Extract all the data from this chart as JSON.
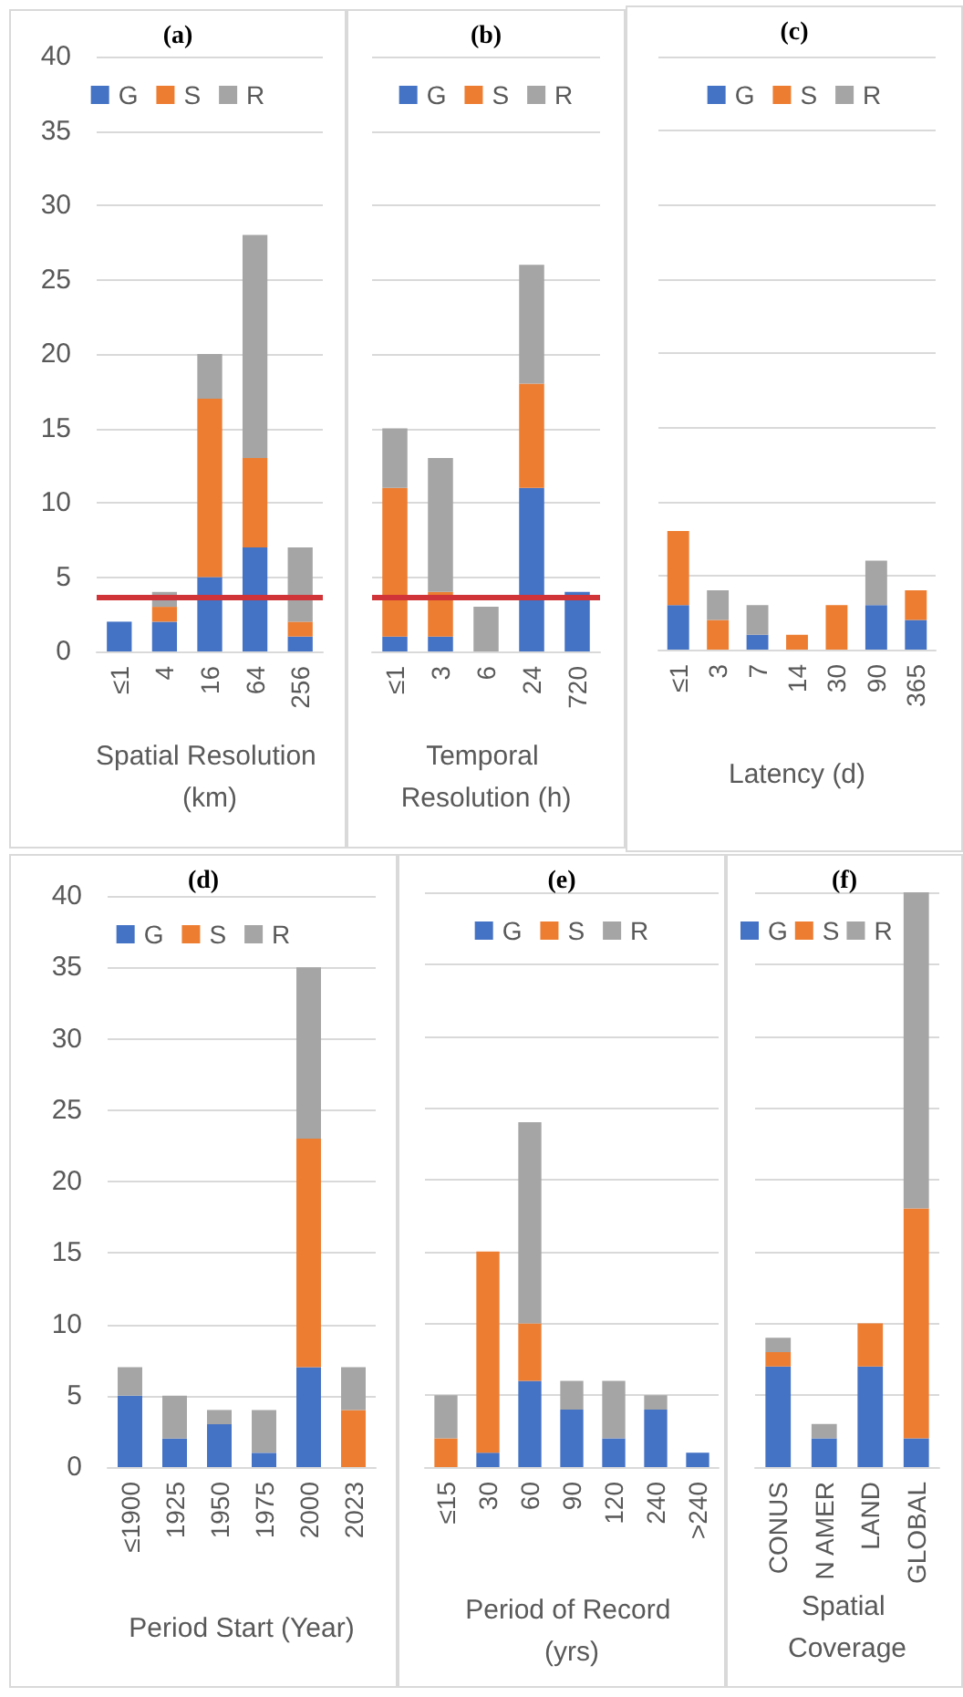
{
  "chart_data": [
    {
      "type": "bar",
      "title": "(a)",
      "xlabel": "Spatial Resolution (km)",
      "categories": [
        "≤1",
        "4",
        "16",
        "64",
        "256"
      ],
      "stacked": true,
      "ylim": [
        0,
        40
      ],
      "yticks": [
        0,
        5,
        10,
        15,
        20,
        25,
        30,
        35,
        40
      ],
      "grid": "y",
      "legend": "top",
      "ref_lines": [
        {
          "axis": "y",
          "value": 3.7,
          "color": "#d13438",
          "line_style": "solid"
        }
      ],
      "series": [
        {
          "name": "G",
          "color": "#4472c4",
          "values": [
            2,
            2,
            5,
            7,
            1
          ]
        },
        {
          "name": "S",
          "color": "#ed7d31",
          "values": [
            0,
            1,
            12,
            6,
            1
          ]
        },
        {
          "name": "R",
          "color": "#a5a5a5",
          "values": [
            0,
            1,
            3,
            15,
            5
          ]
        }
      ]
    },
    {
      "type": "bar",
      "title": "(b)",
      "xlabel": "Temporal Resolution (h)",
      "categories": [
        "≤1",
        "3",
        "6",
        "24",
        "720"
      ],
      "stacked": true,
      "ylim": [
        0,
        40
      ],
      "yticks": [
        0,
        5,
        10,
        15,
        20,
        25,
        30,
        35,
        40
      ],
      "grid": "y",
      "legend": "top",
      "tick_labels": "x",
      "ref_lines": [
        {
          "axis": "y",
          "value": 3.7,
          "color": "#d13438",
          "line_style": "solid"
        }
      ],
      "series": [
        {
          "name": "G",
          "color": "#4472c4",
          "values": [
            1,
            1,
            0,
            11,
            4
          ]
        },
        {
          "name": "S",
          "color": "#ed7d31",
          "values": [
            10,
            3,
            0,
            7,
            0
          ]
        },
        {
          "name": "R",
          "color": "#a5a5a5",
          "values": [
            4,
            9,
            3,
            8,
            0
          ]
        }
      ]
    },
    {
      "type": "bar",
      "title": "(c)",
      "xlabel": "Latency (d)",
      "categories": [
        "≤1",
        "3",
        "7",
        "14",
        "30",
        "90",
        "365"
      ],
      "stacked": true,
      "ylim": [
        0,
        40
      ],
      "yticks": [
        0,
        5,
        10,
        15,
        20,
        25,
        30,
        35,
        40
      ],
      "grid": "y",
      "legend": "top",
      "tick_labels": "x",
      "series": [
        {
          "name": "G",
          "color": "#4472c4",
          "values": [
            3,
            0,
            1,
            0,
            0,
            3,
            2
          ]
        },
        {
          "name": "S",
          "color": "#ed7d31",
          "values": [
            5,
            2,
            0,
            1,
            3,
            0,
            2
          ]
        },
        {
          "name": "R",
          "color": "#a5a5a5",
          "values": [
            0,
            2,
            2,
            0,
            0,
            3,
            0
          ]
        }
      ]
    },
    {
      "type": "bar",
      "title": "(d)",
      "xlabel": "Period Start (Year)",
      "categories": [
        "≤1900",
        "1925",
        "1950",
        "1975",
        "2000",
        "2023"
      ],
      "stacked": true,
      "ylim": [
        0,
        40
      ],
      "yticks": [
        0,
        5,
        10,
        15,
        20,
        25,
        30,
        35,
        40
      ],
      "grid": "y",
      "legend": "top",
      "series": [
        {
          "name": "G",
          "color": "#4472c4",
          "values": [
            5,
            2,
            3,
            1,
            7,
            0
          ]
        },
        {
          "name": "S",
          "color": "#ed7d31",
          "values": [
            0,
            0,
            0,
            0,
            16,
            4
          ]
        },
        {
          "name": "R",
          "color": "#a5a5a5",
          "values": [
            2,
            3,
            1,
            3,
            12,
            3
          ]
        }
      ]
    },
    {
      "type": "bar",
      "title": "(e)",
      "xlabel": "Period of Record (yrs)",
      "categories": [
        "≤15",
        "30",
        "60",
        "90",
        "120",
        "240",
        ">240"
      ],
      "stacked": true,
      "ylim": [
        0,
        40
      ],
      "yticks": [
        0,
        5,
        10,
        15,
        20,
        25,
        30,
        35,
        40
      ],
      "grid": "y",
      "legend": "top",
      "tick_labels": "x",
      "series": [
        {
          "name": "G",
          "color": "#4472c4",
          "values": [
            0,
            1,
            6,
            4,
            2,
            4,
            1
          ]
        },
        {
          "name": "S",
          "color": "#ed7d31",
          "values": [
            2,
            14,
            4,
            0,
            0,
            0,
            0
          ]
        },
        {
          "name": "R",
          "color": "#a5a5a5",
          "values": [
            3,
            0,
            14,
            2,
            4,
            1,
            0
          ]
        }
      ]
    },
    {
      "type": "bar",
      "title": "(f)",
      "xlabel": "Spatial Coverage",
      "categories": [
        "CONUS",
        "N AMER",
        "LAND",
        "GLOBAL"
      ],
      "stacked": true,
      "ylim": [
        0,
        40
      ],
      "yticks": [
        0,
        5,
        10,
        15,
        20,
        25,
        30,
        35,
        40
      ],
      "grid": "y",
      "legend": "top",
      "tick_labels": "x",
      "series": [
        {
          "name": "G",
          "color": "#4472c4",
          "values": [
            7,
            2,
            7,
            2
          ]
        },
        {
          "name": "S",
          "color": "#ed7d31",
          "values": [
            1,
            0,
            3,
            16
          ]
        },
        {
          "name": "R",
          "color": "#a5a5a5",
          "values": [
            1,
            1,
            0,
            22
          ]
        }
      ]
    }
  ]
}
